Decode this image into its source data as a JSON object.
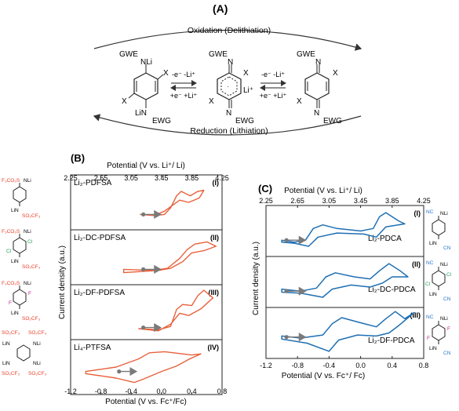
{
  "panel_a": {
    "label": "(A)",
    "top_arrow": "Oxidation (Delithiation)",
    "bottom_arrow": "Reduction (Lithiation)",
    "eq1_top": "-e⁻  -Li⁺",
    "eq1_bottom": "+e⁻  +Li⁺",
    "eq2_top": "-e⁻  -Li⁺",
    "eq2_bottom": "+e⁻  +Li⁺",
    "mol1_top": "GWE",
    "mol1_top_n": "NLi",
    "mol1_x": "X",
    "mol1_bottom_n": "LiN",
    "mol1_bottom": "EWG",
    "mol2_top": "GWE",
    "mol2_top_n": "N",
    "mol2_li": "Li⁺",
    "mol2_bottom_n": "N",
    "mol2_bottom": "EWG",
    "mol3_top": "GWE",
    "mol3_top_n": "N",
    "mol3_bottom_n": "N",
    "mol3_bottom": "EWG"
  },
  "panel_b": {
    "label": "(B)",
    "top_axis_title": "Potential (V vs. Li⁺/ Li)",
    "top_ticks": [
      "2.25",
      "2.65",
      "3.05",
      "3.45",
      "3.85",
      "4.25"
    ],
    "bottom_ticks": [
      "-1.2",
      "-0.8",
      "-0.4",
      "0.0",
      "0.4",
      "0.8"
    ],
    "bottom_axis_title": "Potential (V vs. Fc⁺/Fc)",
    "y_axis_title": "Current density (a.u.)",
    "subpanels": [
      {
        "name": "Li₂-PDFSA",
        "roman": "(I)"
      },
      {
        "name": "Li₂-DC-PDFSA",
        "roman": "(II)"
      },
      {
        "name": "Li₂-DF-PDFSA",
        "roman": "(III)"
      },
      {
        "name": "Li₄-PTFSA",
        "roman": "(IV)"
      }
    ],
    "struct_labels": {
      "s1_top": "F₃CO₂S",
      "s1_nli": "NLi",
      "s1_lin": "LiN",
      "s1_bot": "SO₂CF₃",
      "s2_top": "F₃CO₂S",
      "s2_nli": "NLi",
      "s2_cl_a": "Cl",
      "s2_cl_b": "Cl",
      "s2_lin": "LiN",
      "s2_bot": "SO₂CF₃",
      "s3_top": "F₃CO₂S",
      "s3_nli": "NLi",
      "s3_f_a": "F",
      "s3_f_b": "F",
      "s3_lin": "LiN",
      "s3_bot": "SO₂CF₃",
      "s4_tl": "SO₂CF₃",
      "s4_tr": "SO₂CF₃",
      "s4_lin_l": "LiN",
      "s4_nli_r": "NLi",
      "s4_lin_bl": "LiN",
      "s4_nli_br": "NLi",
      "s4_bl": "SO₂CF₃",
      "s4_br": "SO₂CF₃"
    }
  },
  "panel_c": {
    "label": "(C)",
    "top_axis_title": "Potential (V vs. Li⁺/ Li)",
    "top_ticks": [
      "2.25",
      "2.65",
      "3.05",
      "3.45",
      "3.85",
      "4.25"
    ],
    "bottom_ticks": [
      "-1.2",
      "-0.8",
      "-0.4",
      "0.0",
      "0.4",
      "0.8"
    ],
    "bottom_axis_title": "Potential (V vs. Fc⁺/ Fc)",
    "y_axis_title": "Current density (a.u.)",
    "subpanels": [
      {
        "name": "Li₂-PDCA",
        "roman": "(I)"
      },
      {
        "name": "Li₂-DC-PDCA",
        "roman": "(II)"
      },
      {
        "name": "Li₂-DF-PDCA",
        "roman": "(III)"
      }
    ],
    "struct_labels": {
      "c1_nc": "NC",
      "c1_nli": "NLi",
      "c1_lin": "LiN",
      "c1_cn": "CN",
      "c2_nc": "NC",
      "c2_nli": "NLi",
      "c2_cl_a": "Cl",
      "c2_cl_b": "Cl",
      "c2_lin": "LiN",
      "c2_cn": "CN",
      "c3_nc": "NC",
      "c3_nli": "NLi",
      "c3_f_a": "F",
      "c3_f_b": "F",
      "c3_lin": "LiN",
      "c3_cn": "CN"
    }
  },
  "colors": {
    "orange": "#e8613c",
    "blue": "#1f6fb2",
    "red_group": "#e8402a",
    "blue_group": "#2a77c9",
    "magenta": "#c0219a",
    "green_cl": "#22a35a",
    "arrow": "#7a7a7a"
  }
}
